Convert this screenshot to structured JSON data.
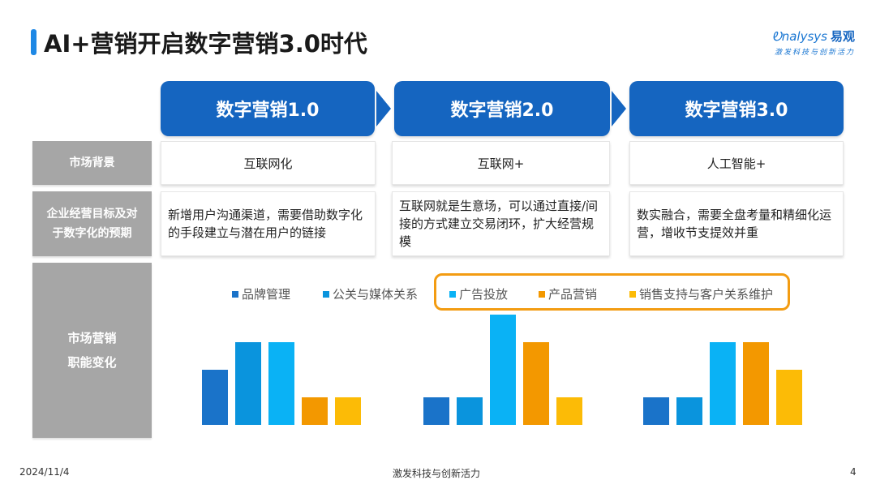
{
  "header": {
    "title": "AI+营销开启数字营销3.0时代",
    "logo_text": "nalysys",
    "logo_prefix": "Ꭷ",
    "logo_cn": "易观",
    "logo_tagline": "激发科技与创新活力"
  },
  "eras": [
    "数字营销1.0",
    "数字营销2.0",
    "数字营销3.0"
  ],
  "rows": {
    "background": {
      "label": "市场背景",
      "values": [
        "互联网化",
        "互联网+",
        "人工智能+"
      ]
    },
    "goals": {
      "label_line1": "企业经营目标及对",
      "label_line2": "于数字化的预期",
      "values": [
        "新增用户沟通渠道，需要借助数字化的手段建立与潜在用户的链接",
        "互联网就是生意场，可以通过直接/间接的方式建立交易闭环，扩大经营规模",
        "数实融合，需要全盘考量和精细化运营，增收节支提效并重"
      ]
    },
    "functions": {
      "label_line1": "市场营销",
      "label_line2": "职能变化"
    }
  },
  "chart_data": {
    "type": "bar",
    "categories": [
      "数字营销1.0",
      "数字营销2.0",
      "数字营销3.0"
    ],
    "series": [
      {
        "name": "品牌管理",
        "color": "#1a73c9",
        "values": [
          2,
          1,
          1
        ]
      },
      {
        "name": "公关与媒体关系",
        "color": "#0a94dd",
        "values": [
          3,
          1,
          1
        ]
      },
      {
        "name": "广告投放",
        "color": "#0ab2f5",
        "values": [
          3,
          4,
          3
        ]
      },
      {
        "name": "产品营销",
        "color": "#f39800",
        "values": [
          1,
          3,
          3
        ]
      },
      {
        "name": "销售支持与客户关系维护",
        "color": "#fcbb06",
        "values": [
          1,
          1,
          2
        ]
      }
    ],
    "ylim": [
      0,
      4
    ],
    "grid": false,
    "legend_position": "top",
    "highlighted_series": [
      "广告投放",
      "产品营销",
      "销售支持与客户关系维护"
    ]
  },
  "footer": {
    "date": "2024/11/4",
    "tagline": "激发科技与创新活力",
    "page": "4"
  }
}
